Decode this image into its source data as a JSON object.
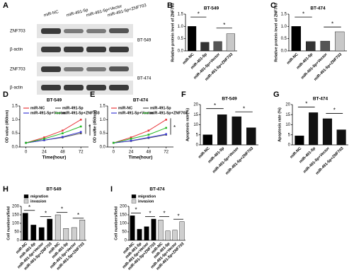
{
  "panel_a": {
    "letter": "A",
    "columns": [
      "miR-NC",
      "miR-491-5p",
      "miR-491-5p+Vector",
      "miR-491-5p+ZNF703"
    ],
    "rows": [
      "ZNF703",
      "β-actin",
      "ZNF703",
      "β-actin"
    ],
    "cell_lines": [
      "BT-549",
      "BT-474"
    ]
  },
  "chart_data": [
    {
      "type": "bar",
      "letter": "B",
      "title": "BT-549",
      "ylabel": "Relative protein level of ZNF703",
      "categories": [
        "miR-NC",
        "miR-491-5p",
        "miR-491-5p+Vector",
        "miR-491-5p+ZNF703"
      ],
      "values": [
        1.0,
        0.35,
        0.38,
        0.7
      ],
      "colors": [
        "#000000",
        "#333333",
        "#555555",
        "#c8c8c8"
      ],
      "ylim": [
        0,
        1.5
      ],
      "yticks": [
        {
          "value": 0,
          "label": "0.0"
        },
        {
          "value": 0.5,
          "label": "0.5"
        },
        {
          "value": 1,
          "label": "1.0"
        },
        {
          "value": 1.5,
          "label": "1.5"
        }
      ],
      "annotations": [
        "*",
        "*"
      ]
    },
    {
      "type": "bar",
      "letter": "C",
      "title": "BT-474",
      "ylabel": "Relative protein level of ZNF703",
      "categories": [
        "miR-NC",
        "miR-491-5p",
        "miR-491-5p+Vector",
        "miR-491-5p+ZNF703"
      ],
      "values": [
        1.0,
        0.38,
        0.4,
        0.78
      ],
      "colors": [
        "#000000",
        "#333333",
        "#555555",
        "#c8c8c8"
      ],
      "ylim": [
        0,
        1.5
      ],
      "yticks": [
        {
          "value": 0,
          "label": "0.0"
        },
        {
          "value": 0.5,
          "label": "0.5"
        },
        {
          "value": 1,
          "label": "1.0"
        },
        {
          "value": 1.5,
          "label": "1.5"
        }
      ],
      "annotations": [
        "*",
        "*"
      ]
    },
    {
      "type": "line",
      "letter": "D",
      "title": "BT-549",
      "ylabel": "OD value (450nm)",
      "xlabel": "Time(hour)",
      "x": [
        0,
        24,
        48,
        72
      ],
      "xlim": [
        -8,
        82
      ],
      "xticks": [
        0,
        24,
        48,
        72
      ],
      "ylim": [
        0,
        1.5
      ],
      "yticks": [
        {
          "value": 0,
          "label": "0.0"
        },
        {
          "value": 0.5,
          "label": "0.5"
        },
        {
          "value": 1,
          "label": "1.0"
        },
        {
          "value": 1.5,
          "label": "1.5"
        }
      ],
      "series": [
        {
          "name": "miR-NC",
          "color": "#e8383d",
          "values": [
            0.15,
            0.35,
            0.6,
            1.0
          ]
        },
        {
          "name": "miR-491-5p",
          "color": "#555555",
          "values": [
            0.15,
            0.25,
            0.35,
            0.5
          ]
        },
        {
          "name": "miR-491-5p+Vector",
          "color": "#3b3bd6",
          "values": [
            0.15,
            0.25,
            0.37,
            0.55
          ]
        },
        {
          "name": "miR-491-5p+ZNF703",
          "color": "#22b822",
          "values": [
            0.15,
            0.3,
            0.5,
            0.75
          ]
        }
      ],
      "annotations": [
        "*",
        "*"
      ]
    },
    {
      "type": "line",
      "letter": "E",
      "title": "BT-474",
      "ylabel": "OD value (450nm)",
      "xlabel": "Time(hour)",
      "x": [
        0,
        24,
        48,
        72
      ],
      "xlim": [
        -8,
        82
      ],
      "xticks": [
        0,
        24,
        48,
        72
      ],
      "ylim": [
        0,
        1.5
      ],
      "yticks": [
        {
          "value": 0,
          "label": "0.0"
        },
        {
          "value": 0.5,
          "label": "0.5"
        },
        {
          "value": 1,
          "label": "1.0"
        },
        {
          "value": 1.5,
          "label": "1.5"
        }
      ],
      "series": [
        {
          "name": "miR-NC",
          "color": "#e8383d",
          "values": [
            0.15,
            0.35,
            0.6,
            1.0
          ]
        },
        {
          "name": "miR-491-5p",
          "color": "#555555",
          "values": [
            0.15,
            0.22,
            0.33,
            0.45
          ]
        },
        {
          "name": "miR-491-5p+Vector",
          "color": "#3b3bd6",
          "values": [
            0.15,
            0.23,
            0.35,
            0.47
          ]
        },
        {
          "name": "miR-491-5p+ZNF703",
          "color": "#22b822",
          "values": [
            0.15,
            0.3,
            0.45,
            0.7
          ]
        }
      ],
      "annotations": [
        "*"
      ]
    },
    {
      "type": "bar",
      "letter": "F",
      "title": "BT-549",
      "ylabel": "Apoptosis rate(%)",
      "categories": [
        "miR-NC",
        "miR-491-5p",
        "miR-491-5p+Vector",
        "miR-491-5p+ZNF703"
      ],
      "values": [
        5,
        15,
        14,
        8.5
      ],
      "colors": [
        "#000000",
        "#111111",
        "#111111",
        "#111111"
      ],
      "ylim": [
        0,
        20
      ],
      "yticks": [
        0,
        5,
        10,
        15,
        20
      ],
      "annotations": [
        "*",
        "*"
      ]
    },
    {
      "type": "bar",
      "letter": "G",
      "title": "BT-474",
      "ylabel": "Apoptosis rate (%)",
      "categories": [
        "miR-NC",
        "miR-491-5p",
        "miR-491-5p+Vector",
        "miR-491-5p+ZNF703"
      ],
      "values": [
        4.5,
        16,
        13,
        7.5
      ],
      "colors": [
        "#000000",
        "#111111",
        "#111111",
        "#111111"
      ],
      "ylim": [
        0,
        20
      ],
      "yticks": [
        0,
        5,
        10,
        15,
        20
      ],
      "annotations": [
        "*",
        "*"
      ]
    },
    {
      "type": "bar",
      "letter": "H",
      "title": "BT-549",
      "ylabel": "Cell numbers/field",
      "categories": [
        "miR-NC",
        "miR-491-5p",
        "miR-491-5p+Vector",
        "miR-491-5p+ZNF703",
        "miR-NC",
        "miR-491-5p",
        "miR-491-5p+Vector",
        "miR-491-5p+ZNF703"
      ],
      "series": [
        {
          "name": "migration",
          "color": "#000000",
          "values": [
            160,
            90,
            75,
            125,
            null,
            null,
            null,
            null
          ]
        },
        {
          "name": "invasion",
          "color": "#cfcfcf",
          "values": [
            null,
            null,
            null,
            null,
            150,
            70,
            75,
            120
          ]
        }
      ],
      "ylim": [
        0,
        200
      ],
      "yticks": [
        0,
        50,
        100,
        150,
        200
      ],
      "annotations": [
        "*",
        "*",
        "*",
        "*"
      ]
    },
    {
      "type": "bar",
      "letter": "I",
      "title": "BT-474",
      "ylabel": "Cell numbers/field",
      "categories": [
        "miR-NC",
        "miR-491-5p",
        "miR-491-5p+Vector",
        "miR-491-5p+ZNF703",
        "miR-NC",
        "miR-491-5p",
        "miR-491-5p+Vector",
        "miR-491-5p+ZNF703"
      ],
      "series": [
        {
          "name": "migration",
          "color": "#000000",
          "values": [
            145,
            65,
            80,
            125,
            null,
            null,
            null,
            null
          ]
        },
        {
          "name": "invasion",
          "color": "#cfcfcf",
          "values": [
            null,
            null,
            null,
            null,
            120,
            55,
            60,
            110
          ]
        }
      ],
      "ylim": [
        0,
        200
      ],
      "yticks": [
        0,
        50,
        100,
        150,
        200
      ],
      "annotations": [
        "*",
        "*",
        "*",
        "*"
      ]
    }
  ]
}
